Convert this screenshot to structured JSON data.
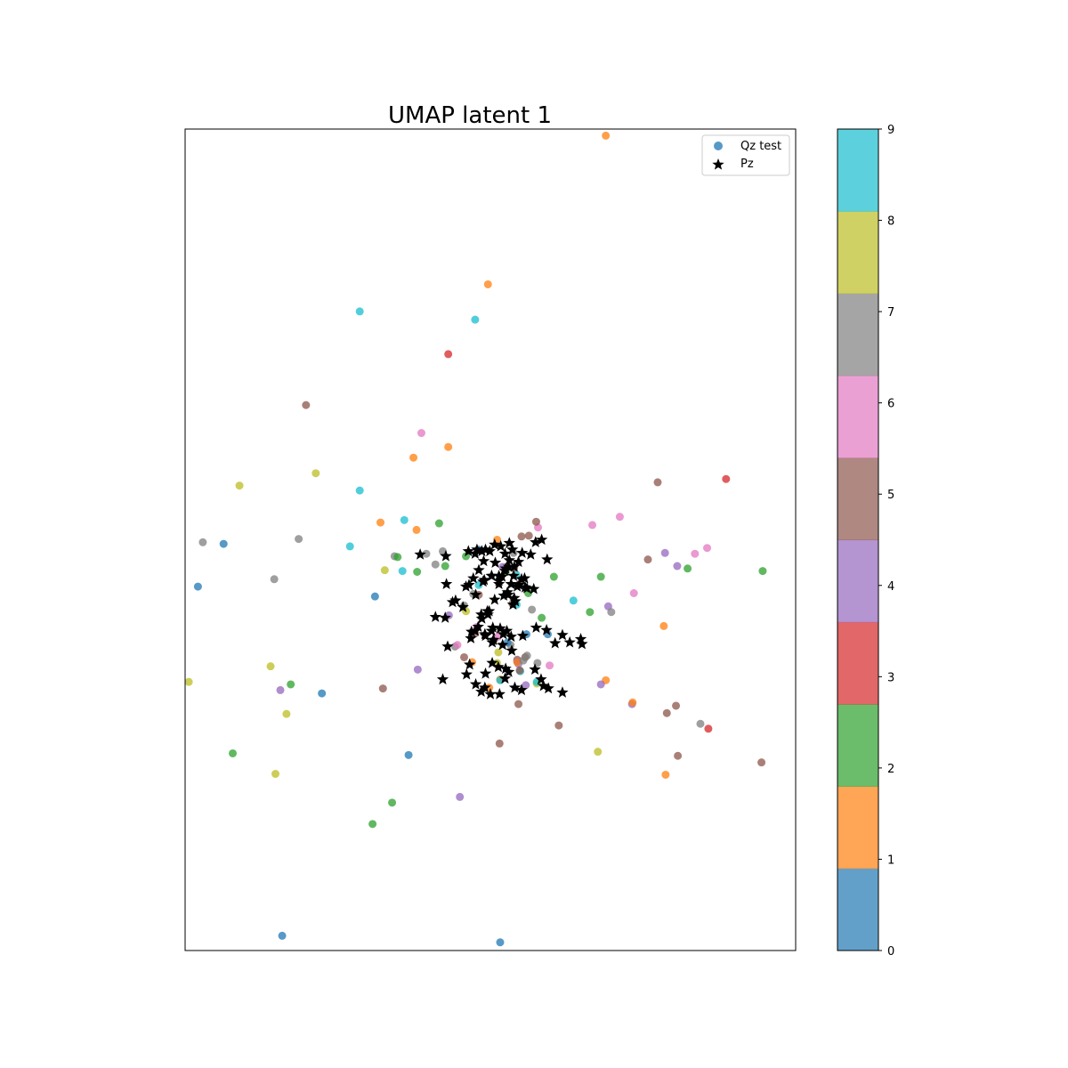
{
  "chart_data": {
    "type": "scatter",
    "title": "UMAP latent 1",
    "xlabel": "",
    "ylabel": "",
    "xticks": "hidden",
    "yticks": "hidden",
    "xlim": [
      0,
      1000
    ],
    "ylim": [
      0,
      1000
    ],
    "grid": false,
    "legend": {
      "placement": "top-right",
      "entries": [
        {
          "label": "Qz test",
          "marker": "circle",
          "color": "#1f77b4"
        },
        {
          "label": "Pz",
          "marker": "star",
          "color": "#000000"
        }
      ]
    },
    "colorbar": {
      "min": 0,
      "max": 9,
      "ticks": [
        "0",
        "1",
        "2",
        "3",
        "4",
        "5",
        "6",
        "7",
        "8",
        "9"
      ],
      "colors": [
        "#1f77b4",
        "#ff7f0e",
        "#2ca02c",
        "#d62728",
        "#9467bd",
        "#8c564b",
        "#e377c2",
        "#7f7f7f",
        "#bcbd22",
        "#17becf"
      ]
    },
    "series": [
      {
        "name": "Qz test",
        "marker": "circle",
        "points": [
          [
            689,
            992,
            1
          ],
          [
            496,
            811,
            1
          ],
          [
            286,
            778,
            9
          ],
          [
            475,
            768,
            9
          ],
          [
            431,
            726,
            3
          ],
          [
            198,
            664,
            5
          ],
          [
            387,
            630,
            6
          ],
          [
            431,
            613,
            1
          ],
          [
            374,
            600,
            1
          ],
          [
            214,
            581,
            8
          ],
          [
            89,
            566,
            8
          ],
          [
            286,
            560,
            9
          ],
          [
            359,
            524,
            9
          ],
          [
            320,
            521,
            1
          ],
          [
            774,
            570,
            5
          ],
          [
            886,
            574,
            3
          ],
          [
            712,
            528,
            6
          ],
          [
            578,
            515,
            6
          ],
          [
            667,
            518,
            6
          ],
          [
            563,
            505,
            5
          ],
          [
            422,
            486,
            7
          ],
          [
            511,
            500,
            1
          ],
          [
            395,
            483,
            7
          ],
          [
            29,
            497,
            7
          ],
          [
            63,
            495,
            0
          ],
          [
            186,
            501,
            7
          ],
          [
            270,
            492,
            9
          ],
          [
            343,
            480,
            7
          ],
          [
            551,
            504,
            5
          ],
          [
            575,
            522,
            5
          ],
          [
            758,
            476,
            5
          ],
          [
            835,
            483,
            6
          ],
          [
            855,
            490,
            6
          ],
          [
            806,
            468,
            4
          ],
          [
            786,
            484,
            4
          ],
          [
            823,
            465,
            2
          ],
          [
            946,
            462,
            2
          ],
          [
            681,
            455,
            2
          ],
          [
            604,
            455,
            2
          ],
          [
            693,
            419,
            4
          ],
          [
            735,
            435,
            6
          ],
          [
            379,
            512,
            1
          ],
          [
            416,
            520,
            2
          ],
          [
            481,
            488,
            0
          ],
          [
            460,
            480,
            2
          ],
          [
            348,
            479,
            2
          ],
          [
            327,
            463,
            8
          ],
          [
            356,
            462,
            9
          ],
          [
            380,
            461,
            2
          ],
          [
            542,
            458,
            9
          ],
          [
            410,
            470,
            7
          ],
          [
            538,
            484,
            7
          ],
          [
            457,
            420,
            7
          ],
          [
            562,
            435,
            2
          ],
          [
            481,
            445,
            9
          ],
          [
            481,
            433,
            5
          ],
          [
            472,
            434,
            7
          ],
          [
            525,
            461,
            2
          ],
          [
            539,
            466,
            5
          ],
          [
            520,
            467,
            4
          ],
          [
            426,
            468,
            2
          ],
          [
            21,
            443,
            0
          ],
          [
            146,
            452,
            7
          ],
          [
            311,
            431,
            0
          ],
          [
            478,
            394,
            6
          ],
          [
            460,
            413,
            8
          ],
          [
            568,
            415,
            7
          ],
          [
            536,
            422,
            5
          ],
          [
            543,
            421,
            9
          ],
          [
            636,
            426,
            9
          ],
          [
            663,
            412,
            2
          ],
          [
            584,
            405,
            2
          ],
          [
            698,
            412,
            7
          ],
          [
            784,
            395,
            1
          ],
          [
            442,
            370,
            7
          ],
          [
            511,
            350,
            8
          ],
          [
            544,
            354,
            5
          ],
          [
            546,
            349,
            4
          ],
          [
            544,
            352,
            4
          ],
          [
            381,
            342,
            4
          ],
          [
            457,
            357,
            5
          ],
          [
            544,
            351,
            1
          ],
          [
            557,
            357,
            5
          ],
          [
            577,
            350,
            7
          ],
          [
            554,
            353,
            7
          ],
          [
            432,
            408,
            4
          ],
          [
            470,
            351,
            1
          ],
          [
            597,
            347,
            6
          ],
          [
            475,
            386,
            5
          ],
          [
            594,
            385,
            0
          ],
          [
            559,
            385,
            0
          ],
          [
            533,
            372,
            7
          ],
          [
            512,
            382,
            6
          ],
          [
            528,
            375,
            0
          ],
          [
            513,
            363,
            8
          ],
          [
            446,
            372,
            6
          ],
          [
            549,
            340,
            9
          ],
          [
            548,
            341,
            5
          ],
          [
            516,
            330,
            1
          ],
          [
            516,
            329,
            9
          ],
          [
            558,
            323,
            4
          ],
          [
            576,
            325,
            8
          ],
          [
            498,
            320,
            1
          ],
          [
            689,
            329,
            1
          ],
          [
            681,
            324,
            4
          ],
          [
            140,
            346,
            8
          ],
          [
            173,
            324,
            2
          ],
          [
            156,
            317,
            4
          ],
          [
            224,
            313,
            0
          ],
          [
            166,
            288,
            8
          ],
          [
            6,
            327,
            8
          ],
          [
            324,
            319,
            5
          ],
          [
            560,
            359,
            7
          ],
          [
            546,
            300,
            5
          ],
          [
            732,
            300,
            4
          ],
          [
            844,
            276,
            7
          ],
          [
            576,
            327,
            9
          ],
          [
            733,
            302,
            1
          ],
          [
            804,
            298,
            5
          ],
          [
            857,
            270,
            3
          ],
          [
            612,
            274,
            5
          ],
          [
            515,
            252,
            5
          ],
          [
            789,
            289,
            5
          ],
          [
            366,
            238,
            0
          ],
          [
            78,
            240,
            2
          ],
          [
            148,
            215,
            8
          ],
          [
            676,
            242,
            8
          ],
          [
            807,
            237,
            5
          ],
          [
            944,
            229,
            5
          ],
          [
            787,
            214,
            1
          ],
          [
            450,
            187,
            4
          ],
          [
            339,
            180,
            2
          ],
          [
            307,
            154,
            2
          ],
          [
            159,
            18,
            0
          ],
          [
            516,
            10,
            0
          ]
        ]
      },
      {
        "name": "Pz",
        "marker": "star",
        "points": [
          [
            475,
            483
          ],
          [
            478,
            488
          ],
          [
            486,
            486
          ],
          [
            492,
            488
          ],
          [
            499,
            486
          ],
          [
            507,
            494
          ],
          [
            517,
            492
          ],
          [
            524,
            483
          ],
          [
            531,
            496
          ],
          [
            536,
            488
          ],
          [
            552,
            484
          ],
          [
            574,
            497
          ],
          [
            427,
            480
          ],
          [
            464,
            486
          ],
          [
            489,
            474
          ],
          [
            508,
            472
          ],
          [
            531,
            475
          ],
          [
            546,
            473
          ],
          [
            566,
            482
          ],
          [
            593,
            476
          ],
          [
            584,
            500
          ],
          [
            481,
            463
          ],
          [
            472,
            453
          ],
          [
            465,
            445
          ],
          [
            460,
            443
          ],
          [
            476,
            433
          ],
          [
            490,
            451
          ],
          [
            502,
            456
          ],
          [
            488,
            449
          ],
          [
            502,
            456
          ],
          [
            514,
            456
          ],
          [
            514,
            446
          ],
          [
            524,
            462
          ],
          [
            530,
            467
          ],
          [
            519,
            455
          ],
          [
            525,
            465
          ],
          [
            514,
            450
          ],
          [
            539,
            467
          ],
          [
            534,
            446
          ],
          [
            544,
            443
          ],
          [
            529,
            433
          ],
          [
            522,
            432
          ],
          [
            551,
            452
          ],
          [
            547,
            445
          ],
          [
            556,
            453
          ],
          [
            557,
            442
          ],
          [
            539,
            429
          ],
          [
            528,
            436
          ],
          [
            538,
            456
          ],
          [
            571,
            440
          ],
          [
            560,
            441
          ],
          [
            541,
            425
          ],
          [
            537,
            421
          ],
          [
            507,
            427
          ],
          [
            498,
            413
          ],
          [
            495,
            413
          ],
          [
            486,
            404
          ],
          [
            485,
            409
          ],
          [
            455,
            418
          ],
          [
            443,
            426
          ],
          [
            438,
            424
          ],
          [
            428,
            446
          ],
          [
            480,
            394
          ],
          [
            468,
            380
          ],
          [
            469,
            388
          ],
          [
            492,
            383
          ],
          [
            496,
            409
          ],
          [
            502,
            389
          ],
          [
            491,
            385
          ],
          [
            475,
            389
          ],
          [
            520,
            372
          ],
          [
            521,
            385
          ],
          [
            527,
            389
          ],
          [
            505,
            378
          ],
          [
            505,
            378
          ],
          [
            504,
            393
          ],
          [
            516,
            392
          ],
          [
            534,
            382
          ],
          [
            553,
            383
          ],
          [
            575,
            393
          ],
          [
            592,
            390
          ],
          [
            606,
            374
          ],
          [
            630,
            375
          ],
          [
            618,
            384
          ],
          [
            648,
            379
          ],
          [
            650,
            373
          ],
          [
            535,
            365
          ],
          [
            503,
            375
          ],
          [
            503,
            350
          ],
          [
            513,
            345
          ],
          [
            525,
            343
          ],
          [
            530,
            339
          ],
          [
            524,
            331
          ],
          [
            476,
            324
          ],
          [
            492,
            337
          ],
          [
            491,
            320
          ],
          [
            485,
            315
          ],
          [
            500,
            312
          ],
          [
            515,
            312
          ],
          [
            540,
            320
          ],
          [
            551,
            317
          ],
          [
            573,
            342
          ],
          [
            583,
            330
          ],
          [
            587,
            322
          ],
          [
            595,
            319
          ],
          [
            618,
            314
          ],
          [
            430,
            370
          ],
          [
            422,
            330
          ],
          [
            461,
            336
          ],
          [
            466,
            348
          ],
          [
            426,
            405
          ],
          [
            385,
            482
          ],
          [
            410,
            406
          ]
        ]
      }
    ]
  }
}
